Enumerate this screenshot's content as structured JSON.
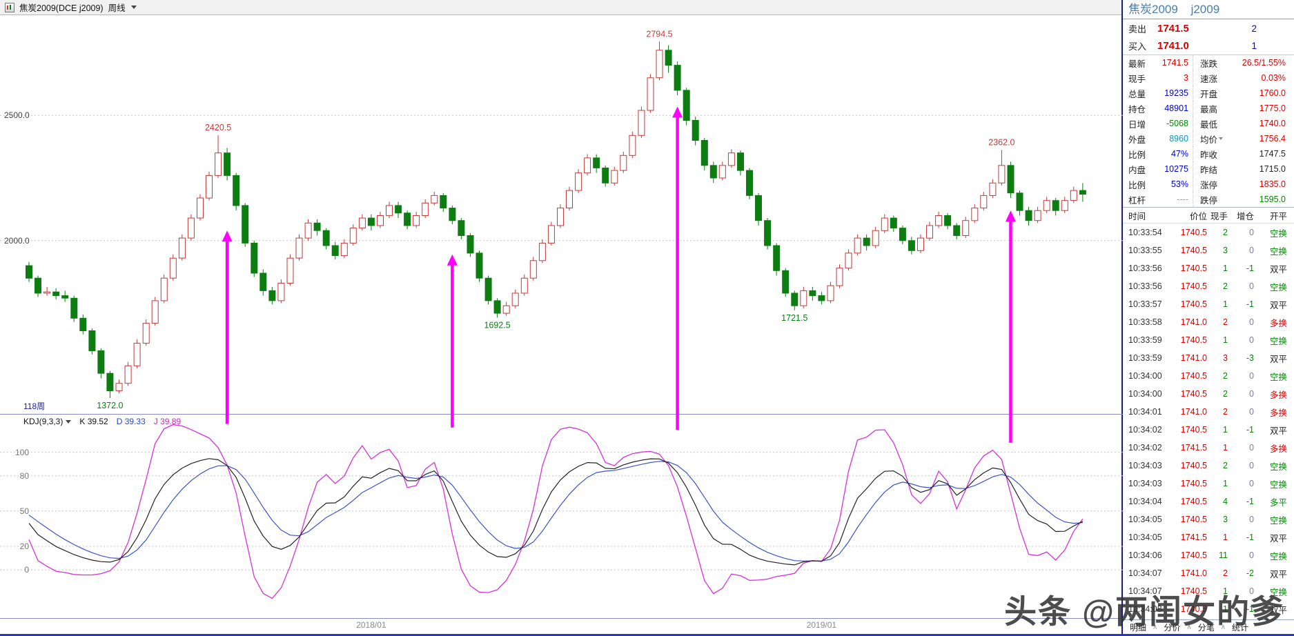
{
  "title_bar": {
    "symbol": "焦炭2009(DCE  j2009)",
    "period": "周线"
  },
  "price_panel": {
    "weeks_label": "118周"
  },
  "kdj_header": {
    "name": "KDJ(9,3,3)",
    "k": "K 39.52",
    "d": "D 39.33",
    "j": "J 39.89"
  },
  "watermark": {
    "text": "头条 @两闺女的爹"
  },
  "colors": {
    "up": "#c23a3a",
    "down": "#0d7d12",
    "arrow": "#ff00ff",
    "k_line": "#222222",
    "d_line": "#3c53c8",
    "j_line": "#d92fd9"
  },
  "chart_data": {
    "type": "candlestick",
    "title": "焦炭2009 周线 K线 + KDJ(9,3,3)",
    "price_axis": {
      "min": 1308,
      "max": 2900,
      "gridlines": [
        {
          "v": 2500,
          "label": "2500.0"
        },
        {
          "v": 2000,
          "label": "2000.0"
        }
      ]
    },
    "kdj_axis": {
      "min": -41,
      "max": 132,
      "gridlines": [
        {
          "v": 100,
          "label": "100"
        },
        {
          "v": 80,
          "label": "80"
        },
        {
          "v": 50,
          "label": "50"
        },
        {
          "v": 20,
          "label": "20"
        },
        {
          "v": 0,
          "label": "0"
        }
      ]
    },
    "kdj_params": [
      9,
      3,
      3
    ],
    "x_axis": [
      {
        "week": 38,
        "label": "2018/01"
      },
      {
        "week": 88,
        "label": "2019/01"
      }
    ],
    "annotations": [
      {
        "week": 21,
        "price": 2420.5,
        "text": "2420.5",
        "kind": "high"
      },
      {
        "week": 70,
        "price": 2794.5,
        "text": "2794.5",
        "kind": "high"
      },
      {
        "week": 108,
        "price": 2362.0,
        "text": "2362.0",
        "kind": "high"
      },
      {
        "week": 9,
        "price": 1372.0,
        "text": "1372.0",
        "kind": "low"
      },
      {
        "week": 52,
        "price": 1692.5,
        "text": "1692.5",
        "kind": "low"
      },
      {
        "week": 85,
        "price": 1721.5,
        "text": "1721.5",
        "kind": "low"
      }
    ],
    "arrows": [
      {
        "week": 22,
        "tip": 2040,
        "tail": 124
      },
      {
        "week": 47,
        "tip": 1945,
        "tail": 121
      },
      {
        "week": 72,
        "tip": 2535,
        "tail": 119
      },
      {
        "week": 109,
        "tip": 2120,
        "tail": 108
      }
    ],
    "candles": [
      [
        1900,
        1915,
        1835,
        1850
      ],
      [
        1850,
        1860,
        1775,
        1790
      ],
      [
        1790,
        1815,
        1780,
        1795
      ],
      [
        1795,
        1810,
        1765,
        1780
      ],
      [
        1780,
        1800,
        1755,
        1770
      ],
      [
        1770,
        1780,
        1675,
        1690
      ],
      [
        1690,
        1705,
        1625,
        1640
      ],
      [
        1640,
        1650,
        1545,
        1560
      ],
      [
        1560,
        1570,
        1450,
        1470
      ],
      [
        1470,
        1480,
        1372,
        1400
      ],
      [
        1400,
        1445,
        1390,
        1430
      ],
      [
        1430,
        1515,
        1420,
        1500
      ],
      [
        1500,
        1605,
        1490,
        1590
      ],
      [
        1590,
        1685,
        1580,
        1670
      ],
      [
        1670,
        1775,
        1660,
        1760
      ],
      [
        1760,
        1865,
        1750,
        1850
      ],
      [
        1850,
        1945,
        1840,
        1930
      ],
      [
        1930,
        2025,
        1920,
        2010
      ],
      [
        2010,
        2105,
        2000,
        2090
      ],
      [
        2090,
        2185,
        2080,
        2170
      ],
      [
        2170,
        2275,
        2160,
        2260
      ],
      [
        2260,
        2420.5,
        2250,
        2350
      ],
      [
        2350,
        2370,
        2240,
        2260
      ],
      [
        2260,
        2270,
        2120,
        2140
      ],
      [
        2140,
        2150,
        1975,
        1990
      ],
      [
        1990,
        2000,
        1855,
        1870
      ],
      [
        1870,
        1885,
        1780,
        1800
      ],
      [
        1800,
        1815,
        1745,
        1760
      ],
      [
        1760,
        1845,
        1750,
        1830
      ],
      [
        1830,
        1945,
        1820,
        1930
      ],
      [
        1930,
        2025,
        1920,
        2010
      ],
      [
        2010,
        2085,
        2000,
        2070
      ],
      [
        2070,
        2085,
        2020,
        2040
      ],
      [
        2040,
        2050,
        1965,
        1980
      ],
      [
        1980,
        1995,
        1925,
        1940
      ],
      [
        1940,
        2005,
        1930,
        1990
      ],
      [
        1990,
        2065,
        1980,
        2050
      ],
      [
        2050,
        2105,
        2040,
        2090
      ],
      [
        2090,
        2105,
        2040,
        2060
      ],
      [
        2060,
        2115,
        2050,
        2100
      ],
      [
        2100,
        2155,
        2090,
        2140
      ],
      [
        2140,
        2155,
        2090,
        2110
      ],
      [
        2110,
        2120,
        2045,
        2060
      ],
      [
        2060,
        2115,
        2050,
        2100
      ],
      [
        2100,
        2165,
        2090,
        2150
      ],
      [
        2150,
        2195,
        2140,
        2180
      ],
      [
        2180,
        2190,
        2115,
        2130
      ],
      [
        2130,
        2140,
        2065,
        2080
      ],
      [
        2080,
        2090,
        2005,
        2020
      ],
      [
        2020,
        2030,
        1935,
        1950
      ],
      [
        1950,
        1960,
        1835,
        1850
      ],
      [
        1850,
        1860,
        1745,
        1760
      ],
      [
        1760,
        1770,
        1692.5,
        1710
      ],
      [
        1710,
        1755,
        1700,
        1740
      ],
      [
        1740,
        1805,
        1730,
        1790
      ],
      [
        1790,
        1865,
        1780,
        1850
      ],
      [
        1850,
        1935,
        1840,
        1920
      ],
      [
        1920,
        2005,
        1910,
        1990
      ],
      [
        1990,
        2075,
        1980,
        2060
      ],
      [
        2060,
        2145,
        2050,
        2130
      ],
      [
        2130,
        2215,
        2120,
        2200
      ],
      [
        2200,
        2285,
        2190,
        2270
      ],
      [
        2270,
        2345,
        2260,
        2330
      ],
      [
        2330,
        2345,
        2270,
        2290
      ],
      [
        2290,
        2300,
        2215,
        2230
      ],
      [
        2230,
        2295,
        2220,
        2280
      ],
      [
        2280,
        2355,
        2270,
        2340
      ],
      [
        2340,
        2435,
        2330,
        2420
      ],
      [
        2420,
        2535,
        2410,
        2520
      ],
      [
        2520,
        2665,
        2510,
        2650
      ],
      [
        2650,
        2794.5,
        2640,
        2760
      ],
      [
        2760,
        2780,
        2670,
        2700
      ],
      [
        2700,
        2715,
        2580,
        2600
      ],
      [
        2600,
        2610,
        2460,
        2480
      ],
      [
        2480,
        2495,
        2380,
        2400
      ],
      [
        2400,
        2410,
        2280,
        2300
      ],
      [
        2300,
        2315,
        2230,
        2250
      ],
      [
        2250,
        2315,
        2240,
        2300
      ],
      [
        2300,
        2365,
        2290,
        2350
      ],
      [
        2350,
        2360,
        2260,
        2280
      ],
      [
        2280,
        2290,
        2165,
        2180
      ],
      [
        2180,
        2190,
        2060,
        2080
      ],
      [
        2080,
        2090,
        1965,
        1980
      ],
      [
        1980,
        1990,
        1860,
        1880
      ],
      [
        1880,
        1890,
        1775,
        1790
      ],
      [
        1790,
        1800,
        1721.5,
        1740
      ],
      [
        1740,
        1815,
        1730,
        1800
      ],
      [
        1800,
        1815,
        1760,
        1780
      ],
      [
        1780,
        1795,
        1745,
        1760
      ],
      [
        1760,
        1835,
        1750,
        1820
      ],
      [
        1820,
        1905,
        1810,
        1890
      ],
      [
        1890,
        1965,
        1880,
        1950
      ],
      [
        1950,
        2025,
        1940,
        2010
      ],
      [
        2010,
        2025,
        1960,
        1980
      ],
      [
        1980,
        2055,
        1970,
        2040
      ],
      [
        2040,
        2105,
        2030,
        2090
      ],
      [
        2090,
        2100,
        2035,
        2050
      ],
      [
        2050,
        2060,
        1985,
        2000
      ],
      [
        2000,
        2015,
        1945,
        1960
      ],
      [
        1960,
        2025,
        1950,
        2010
      ],
      [
        2010,
        2075,
        2000,
        2060
      ],
      [
        2060,
        2115,
        2050,
        2100
      ],
      [
        2100,
        2110,
        2045,
        2060
      ],
      [
        2060,
        2070,
        2005,
        2020
      ],
      [
        2020,
        2095,
        2010,
        2080
      ],
      [
        2080,
        2145,
        2070,
        2130
      ],
      [
        2130,
        2195,
        2120,
        2180
      ],
      [
        2180,
        2245,
        2170,
        2230
      ],
      [
        2230,
        2362,
        2220,
        2300
      ],
      [
        2300,
        2315,
        2170,
        2190
      ],
      [
        2190,
        2200,
        2100,
        2120
      ],
      [
        2120,
        2135,
        2060,
        2080
      ],
      [
        2080,
        2135,
        2070,
        2120
      ],
      [
        2120,
        2175,
        2110,
        2160
      ],
      [
        2160,
        2170,
        2100,
        2120
      ],
      [
        2120,
        2175,
        2110,
        2160
      ],
      [
        2160,
        2215,
        2150,
        2200
      ],
      [
        2200,
        2230,
        2155,
        2185
      ]
    ]
  },
  "quote": {
    "name": "焦炭2009",
    "code": "j2009",
    "ask": {
      "label": "卖出",
      "price": "1741.5",
      "qty": "2"
    },
    "bid": {
      "label": "买入",
      "price": "1741.0",
      "qty": "1"
    },
    "rows": [
      {
        "l": "最新",
        "lv": "1741.5",
        "lc": "r",
        "r": "涨跌",
        "rv": "26.5/1.55%",
        "rc": "r"
      },
      {
        "l": "现手",
        "lv": "3",
        "lc": "r",
        "r": "速涨",
        "rv": "0.03%",
        "rc": "r"
      },
      {
        "l": "总量",
        "lv": "19235",
        "lc": "b",
        "r": "开盘",
        "rv": "1760.0",
        "rc": "r"
      },
      {
        "l": "持仓",
        "lv": "48901",
        "lc": "b",
        "r": "最高",
        "rv": "1775.0",
        "rc": "r"
      },
      {
        "l": "日增",
        "lv": "-5068",
        "lc": "g",
        "r": "最低",
        "rv": "1740.0",
        "rc": "r"
      },
      {
        "l": "外盘",
        "lv": "8960",
        "lc": "c",
        "r": "均价",
        "rv": "1756.4",
        "rc": "r",
        "r_caret": true
      },
      {
        "l": "比例",
        "lv": "47%",
        "lc": "b",
        "r": "昨收",
        "rv": "1747.5",
        "rc": "k"
      },
      {
        "l": "内盘",
        "lv": "10275",
        "lc": "b",
        "r": "昨结",
        "rv": "1715.0",
        "rc": "k"
      },
      {
        "l": "比例",
        "lv": "53%",
        "lc": "b",
        "r": "涨停",
        "rv": "1835.0",
        "rc": "r"
      },
      {
        "l": "杠杆",
        "lv": "----",
        "lc": "gy",
        "r": "跌停",
        "rv": "1595.0",
        "rc": "g"
      }
    ]
  },
  "trades": {
    "headers": [
      "时间",
      "价位",
      "现手",
      "增仓",
      "开平"
    ],
    "rows": [
      [
        "10:33:54",
        "1740.5",
        "2",
        "0",
        "空换"
      ],
      [
        "10:33:55",
        "1740.5",
        "3",
        "0",
        "空换"
      ],
      [
        "10:33:56",
        "1740.5",
        "1",
        "-1",
        "双平"
      ],
      [
        "10:33:56",
        "1740.5",
        "2",
        "0",
        "空换"
      ],
      [
        "10:33:57",
        "1740.5",
        "1",
        "-1",
        "双平"
      ],
      [
        "10:33:58",
        "1741.0",
        "2",
        "0",
        "多换"
      ],
      [
        "10:33:59",
        "1740.5",
        "1",
        "0",
        "空换"
      ],
      [
        "10:33:59",
        "1741.0",
        "3",
        "-3",
        "双平"
      ],
      [
        "10:34:00",
        "1740.5",
        "2",
        "0",
        "空换"
      ],
      [
        "10:34:00",
        "1740.5",
        "2",
        "0",
        "多换"
      ],
      [
        "10:34:01",
        "1741.0",
        "2",
        "0",
        "多换"
      ],
      [
        "10:34:02",
        "1740.5",
        "1",
        "-1",
        "双平"
      ],
      [
        "10:34:02",
        "1741.5",
        "1",
        "0",
        "多换"
      ],
      [
        "10:34:03",
        "1740.5",
        "2",
        "0",
        "空换"
      ],
      [
        "10:34:03",
        "1740.5",
        "1",
        "0",
        "空换"
      ],
      [
        "10:34:04",
        "1740.5",
        "4",
        "-1",
        "多平"
      ],
      [
        "10:34:05",
        "1740.5",
        "3",
        "0",
        "空换"
      ],
      [
        "10:34:05",
        "1741.5",
        "1",
        "-1",
        "双平"
      ],
      [
        "10:34:06",
        "1740.5",
        "11",
        "0",
        "空换"
      ],
      [
        "10:34:07",
        "1741.0",
        "2",
        "-2",
        "双平"
      ],
      [
        "10:34:07",
        "1740.5",
        "1",
        "0",
        "空换"
      ],
      [
        "10:34:08",
        "1740.5",
        "1",
        "-1",
        "双平"
      ]
    ]
  },
  "tabs": {
    "items": [
      "明细",
      "分价",
      "分笔",
      "统计"
    ],
    "separator": "∧"
  }
}
